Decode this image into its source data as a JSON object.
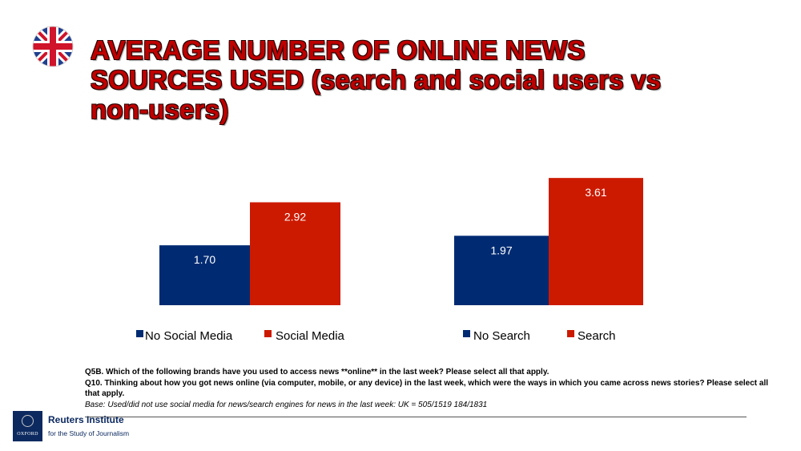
{
  "header": {
    "title_lines": [
      "AVERAGE NUMBER OF ONLINE NEWS",
      "SOURCES USED (search and social users vs",
      "non-users)"
    ],
    "flag_icon": "uk-flag-icon"
  },
  "colors": {
    "blue": "#002b72",
    "red": "#cc1a00",
    "title_red": "#c00000"
  },
  "chart_data": [
    {
      "type": "bar",
      "categories": [
        "No Social Media",
        "Social Media"
      ],
      "values": [
        1.7,
        2.92
      ],
      "labels": [
        "1.70",
        "2.92"
      ],
      "colors": [
        "#002b72",
        "#cc1a00"
      ],
      "legend": [
        "No Social Media",
        "Social Media"
      ],
      "legend_position": "bottom",
      "grid": false,
      "ylim": [
        0,
        4.2
      ]
    },
    {
      "type": "bar",
      "categories": [
        "No Search",
        "Search"
      ],
      "values": [
        1.97,
        3.61
      ],
      "labels": [
        "1.97",
        "3.61"
      ],
      "colors": [
        "#002b72",
        "#cc1a00"
      ],
      "legend": [
        "No Search",
        "Search"
      ],
      "legend_position": "bottom",
      "grid": false,
      "ylim": [
        0,
        4.2
      ]
    }
  ],
  "notes": {
    "q5b": "Q5B. Which of the following brands have you used to access news **online** in the last week? Please select all that apply.",
    "q10": "Q10. Thinking about how you got news online (via computer, mobile, or any device) in the last week, which were the ways in which you came across news stories? Please select all that apply.",
    "base": "Base: Used/did not use social media for news/search engines for news in the last week:  UK = 505/1519 184/1831"
  },
  "logo": {
    "university_text": "OXFORD",
    "name": "Reuters Institute",
    "subtitle": "for the Study of Journalism"
  }
}
